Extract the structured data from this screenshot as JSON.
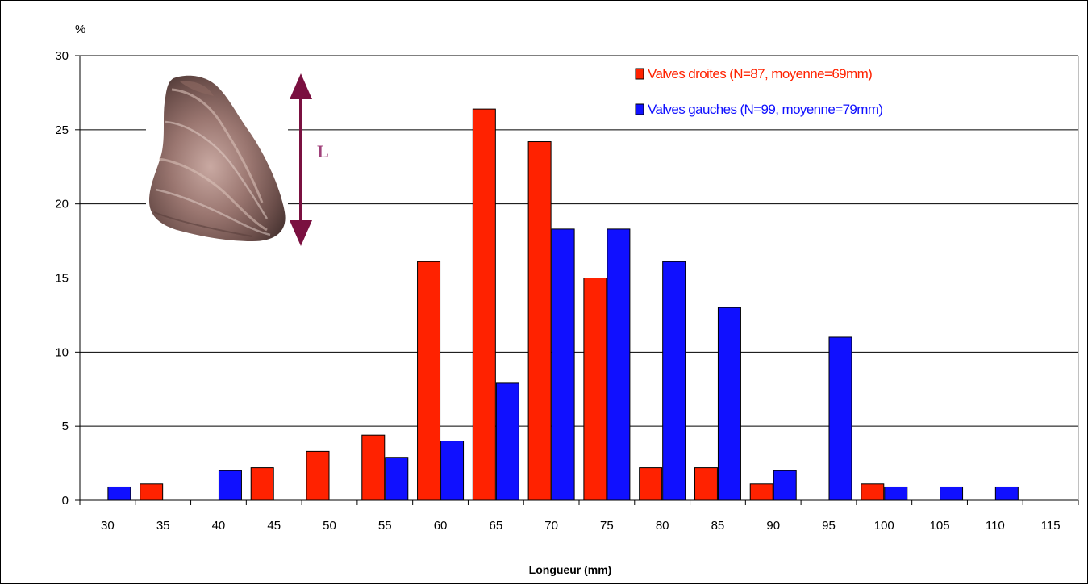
{
  "chart_data": {
    "type": "bar",
    "title": "",
    "xlabel": "Longueur (mm)",
    "ylabel": "%",
    "ylim": [
      0,
      30
    ],
    "yticks": [
      0,
      5,
      10,
      15,
      20,
      25,
      30
    ],
    "grid": "horizontal",
    "legend_position": "top-right",
    "categories": [
      "30",
      "35",
      "40",
      "45",
      "50",
      "55",
      "60",
      "65",
      "70",
      "75",
      "80",
      "85",
      "90",
      "95",
      "100",
      "105",
      "110",
      "115"
    ],
    "series": [
      {
        "name": "Valves droites (N=87, moyenne=69mm)",
        "color": "#ff2200",
        "values": [
          0,
          1.1,
          0,
          2.2,
          3.3,
          4.4,
          16.1,
          26.4,
          24.2,
          15.0,
          2.2,
          2.2,
          1.1,
          0,
          1.1,
          0,
          0,
          0
        ]
      },
      {
        "name": "Valves gauches (N=99, moyenne=79mm)",
        "color": "#1010ff",
        "values": [
          0.9,
          0,
          2.0,
          0,
          0,
          2.9,
          4.0,
          7.9,
          18.3,
          18.3,
          16.1,
          13.0,
          2.0,
          11.0,
          0.9,
          0.9,
          0.9,
          0
        ]
      }
    ],
    "annotation": {
      "label": "L",
      "arrow_color": "#7a1040",
      "label_color": "#a0407a",
      "picture": "oyster-shell"
    }
  }
}
